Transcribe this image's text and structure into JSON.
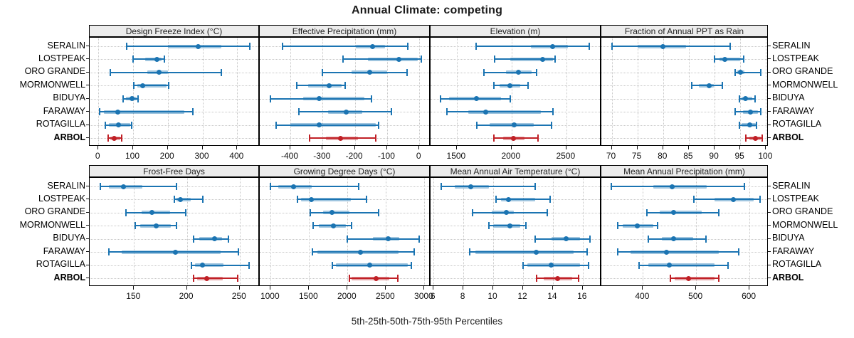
{
  "title": "Annual Climate: competing",
  "caption": "5th-25th-50th-75th-95th Percentiles",
  "colors": {
    "series": "#1b74b2",
    "highlight": "#c02026",
    "grid": "#c6c6c6",
    "strip_bg": "#ececec",
    "border": "#000000"
  },
  "chart_data": {
    "type": "dotplot_percentile_intervals",
    "percentiles": [
      5,
      25,
      50,
      75,
      95
    ],
    "panel_grid": {
      "rows": 2,
      "cols": 4
    },
    "sites": [
      "SERALIN",
      "LOSTPEAK",
      "ORO GRANDE",
      "MORMONWELL",
      "BIDUYA",
      "FARAWAY",
      "ROTAGILLA",
      "ARBOL"
    ],
    "highlight_site": "ARBOL",
    "panels": [
      {
        "title": "Design Freeze Index (°C)",
        "row": 0,
        "col": 0,
        "axis_domain": [
          -25,
          465
        ],
        "ticks": [
          0,
          100,
          200,
          300,
          400
        ],
        "values_by_site": [
          [
            82,
            200,
            288,
            355,
            437
          ],
          [
            100,
            135,
            168,
            182,
            190
          ],
          [
            35,
            140,
            175,
            200,
            355
          ],
          [
            103,
            113,
            128,
            196,
            203
          ],
          [
            72,
            80,
            97,
            110,
            115
          ],
          [
            4,
            16,
            55,
            248,
            273
          ],
          [
            21,
            30,
            57,
            92,
            96
          ],
          [
            28,
            34,
            45,
            63,
            68
          ]
        ]
      },
      {
        "title": "Effective Precipitation (mm)",
        "row": 0,
        "col": 1,
        "axis_domain": [
          -495,
          35
        ],
        "ticks": [
          -400,
          -300,
          -200,
          -100,
          0
        ],
        "values_by_site": [
          [
            -424,
            -196,
            -144,
            -106,
            -36
          ],
          [
            -237,
            -160,
            -63,
            -5,
            6
          ],
          [
            -300,
            -210,
            -154,
            -100,
            -38
          ],
          [
            -381,
            -344,
            -279,
            -242,
            -231
          ],
          [
            -463,
            -360,
            -311,
            -170,
            -148
          ],
          [
            -374,
            -284,
            -227,
            -176,
            -86
          ],
          [
            -445,
            -400,
            -310,
            -135,
            -127
          ],
          [
            -341,
            -289,
            -244,
            -190,
            -136
          ]
        ]
      },
      {
        "title": "Elevation (m)",
        "row": 0,
        "col": 2,
        "axis_domain": [
          1260,
          2820
        ],
        "ticks": [
          1500,
          2000,
          2500
        ],
        "values_by_site": [
          [
            1678,
            2177,
            2375,
            2517,
            2710
          ],
          [
            1845,
            1990,
            2285,
            2380,
            2400
          ],
          [
            1750,
            1950,
            2060,
            2180,
            2227
          ],
          [
            1840,
            1890,
            1985,
            2080,
            2150
          ],
          [
            1350,
            1430,
            1680,
            1905,
            1985
          ],
          [
            1410,
            1605,
            1765,
            2270,
            2375
          ],
          [
            1680,
            1800,
            2025,
            2200,
            2365
          ],
          [
            1835,
            1925,
            2015,
            2120,
            2240
          ]
        ]
      },
      {
        "title": "Fraction of Annual PPT as Rain",
        "row": 0,
        "col": 3,
        "axis_domain": [
          68,
          100.5
        ],
        "ticks": [
          70,
          75,
          80,
          85,
          90,
          95,
          100
        ],
        "values_by_site": [
          [
            70,
            75,
            80,
            84.5,
            93
          ],
          [
            90,
            91,
            92,
            95,
            95.7
          ],
          [
            94,
            94.3,
            95,
            95.8,
            99
          ],
          [
            85.5,
            87,
            89,
            89.8,
            91.5
          ],
          [
            94.8,
            95.2,
            96,
            97.3,
            97.8
          ],
          [
            94,
            95.5,
            97,
            98.5,
            99
          ],
          [
            94.8,
            95.3,
            96.8,
            98,
            98.2
          ],
          [
            96,
            96.8,
            98,
            99,
            99.2
          ]
        ]
      },
      {
        "title": "Frost-Free Days",
        "row": 1,
        "col": 0,
        "axis_domain": [
          108,
          269
        ],
        "ticks": [
          150,
          200,
          250
        ],
        "values_by_site": [
          [
            118,
            126,
            140,
            158,
            190
          ],
          [
            188,
            190,
            194,
            204,
            215
          ],
          [
            142,
            157,
            167,
            184,
            199
          ],
          [
            151,
            156,
            171,
            185,
            190
          ],
          [
            206,
            212,
            226,
            233,
            239
          ],
          [
            126,
            138,
            189,
            232,
            249
          ],
          [
            204,
            208,
            215,
            235,
            259
          ],
          [
            206,
            210,
            219,
            234,
            248
          ]
        ]
      },
      {
        "title": "Growing Degree Days (°C)",
        "row": 1,
        "col": 1,
        "axis_domain": [
          858,
          3080
        ],
        "ticks": [
          1000,
          1500,
          2000,
          2500,
          3000
        ],
        "values_by_site": [
          [
            995,
            1095,
            1295,
            1530,
            2140
          ],
          [
            1350,
            1395,
            1530,
            2040,
            2245
          ],
          [
            1515,
            1680,
            1800,
            2025,
            2400
          ],
          [
            1550,
            1630,
            1820,
            1980,
            2050
          ],
          [
            1995,
            2330,
            2530,
            2670,
            2930
          ],
          [
            1545,
            1610,
            2170,
            2660,
            2865
          ],
          [
            1800,
            1845,
            2290,
            2780,
            2830
          ],
          [
            2020,
            2050,
            2375,
            2545,
            2650
          ]
        ]
      },
      {
        "title": "Mean Annual Air Temperature (°C)",
        "row": 1,
        "col": 2,
        "axis_domain": [
          5.8,
          17.25
        ],
        "ticks": [
          6,
          8,
          10,
          12,
          14,
          16
        ],
        "values_by_site": [
          [
            6.5,
            7.4,
            8.5,
            9.7,
            12.8
          ],
          [
            10.2,
            10.5,
            11.0,
            12.8,
            13.8
          ],
          [
            8.6,
            9.9,
            10.9,
            11.4,
            13.6
          ],
          [
            9.7,
            10.0,
            11.1,
            11.8,
            12.2
          ],
          [
            12.8,
            13.9,
            14.9,
            15.8,
            16.5
          ],
          [
            8.4,
            8.8,
            12.9,
            15.4,
            16.3
          ],
          [
            12.0,
            12.3,
            13.9,
            15.8,
            16.4
          ],
          [
            12.9,
            13.4,
            14.3,
            15.3,
            15.7
          ]
        ]
      },
      {
        "title": "Mean Annual Precipitation (mm)",
        "row": 1,
        "col": 3,
        "axis_domain": [
          322,
          636
        ],
        "ticks": [
          400,
          500,
          600
        ],
        "values_by_site": [
          [
            340,
            420,
            455,
            520,
            590
          ],
          [
            495,
            535,
            570,
            608,
            620
          ],
          [
            408,
            432,
            458,
            510,
            542
          ],
          [
            352,
            362,
            390,
            420,
            428
          ],
          [
            410,
            435,
            458,
            495,
            519
          ],
          [
            353,
            377,
            444,
            543,
            580
          ],
          [
            393,
            410,
            449,
            535,
            560
          ],
          [
            451,
            460,
            485,
            535,
            543
          ]
        ]
      }
    ]
  }
}
